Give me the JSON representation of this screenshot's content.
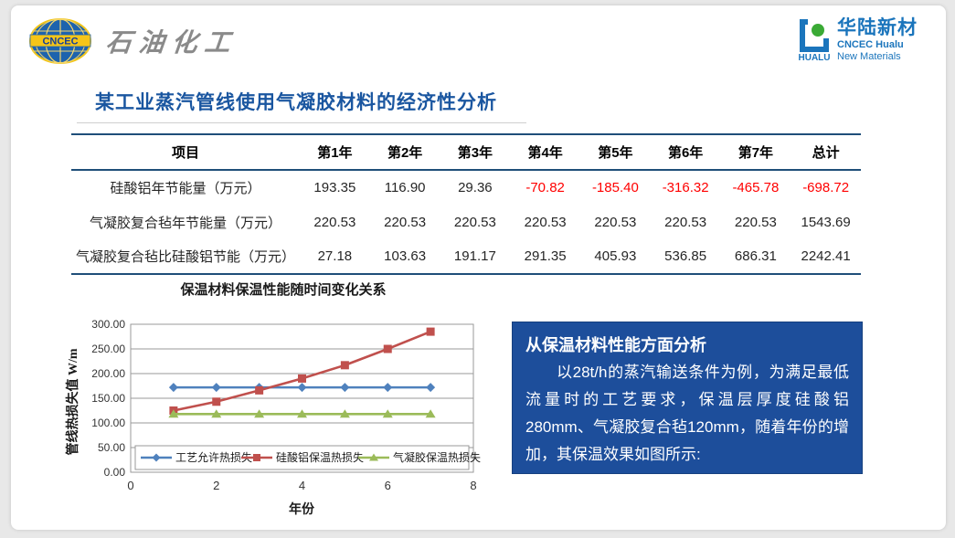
{
  "header": {
    "left_logo": {
      "badge": "CNCEC",
      "brand": "石油化工"
    },
    "right_logo": {
      "mark": "HUALU",
      "name_cn": "华陆新材",
      "name_en1": "CNCEC Hualu",
      "name_en2": "New Materials"
    }
  },
  "title": "某工业蒸汽管线使用气凝胶材料的经济性分析",
  "table": {
    "headers": [
      "项目",
      "第1年",
      "第2年",
      "第3年",
      "第4年",
      "第5年",
      "第6年",
      "第7年",
      "总计"
    ],
    "rows": [
      {
        "label": "硅酸铝年节能量（万元）",
        "values": [
          "193.35",
          "116.90",
          "29.36",
          "-70.82",
          "-185.40",
          "-316.32",
          "-465.78",
          "-698.72"
        ]
      },
      {
        "label": "气凝胶复合毡年节能量（万元）",
        "values": [
          "220.53",
          "220.53",
          "220.53",
          "220.53",
          "220.53",
          "220.53",
          "220.53",
          "1543.69"
        ]
      },
      {
        "label": "气凝胶复合毡比硅酸铝节能（万元）",
        "values": [
          "27.18",
          "103.63",
          "191.17",
          "291.35",
          "405.93",
          "536.85",
          "686.31",
          "2242.41"
        ]
      }
    ],
    "negative_color": "#ff0000"
  },
  "chart_data": {
    "type": "line",
    "title": "保温材料保温性能随时间变化关系",
    "xlabel": "年份",
    "ylabel": "管线热损失值 W/m",
    "x": [
      1,
      2,
      3,
      4,
      5,
      6,
      7
    ],
    "series": [
      {
        "name": "工艺允许热损失",
        "color": "#4F81BD",
        "marker": "diamond",
        "values": [
          172,
          172,
          172,
          172,
          172,
          172,
          172
        ]
      },
      {
        "name": "硅酸铝保温热损失",
        "color": "#C0504D",
        "marker": "square",
        "values": [
          125,
          143,
          166,
          190,
          217,
          250,
          285
        ]
      },
      {
        "name": "气凝胶保温热损失",
        "color": "#9BBB59",
        "marker": "triangle",
        "values": [
          118,
          118,
          118,
          118,
          118,
          118,
          118
        ]
      }
    ],
    "xlim": [
      0,
      8
    ],
    "ylim": [
      0,
      300
    ],
    "y_ticks": [
      "300.00",
      "250.00",
      "200.00",
      "150.00",
      "100.00",
      "50.00",
      "0.00"
    ],
    "x_ticks": [
      "0",
      "2",
      "4",
      "6",
      "8"
    ],
    "grid": true,
    "legend_position": "bottom-inside"
  },
  "analysis": {
    "heading": "从保温材料性能方面分析",
    "body": "以28t/h的蒸汽输送条件为例，为满足最低流量时的工艺要求，保温层厚度硅酸铝280mm、气凝胶复合毡120mm，随着年份的增加，其保温效果如图所示:",
    "background": "#1d4e9b"
  }
}
